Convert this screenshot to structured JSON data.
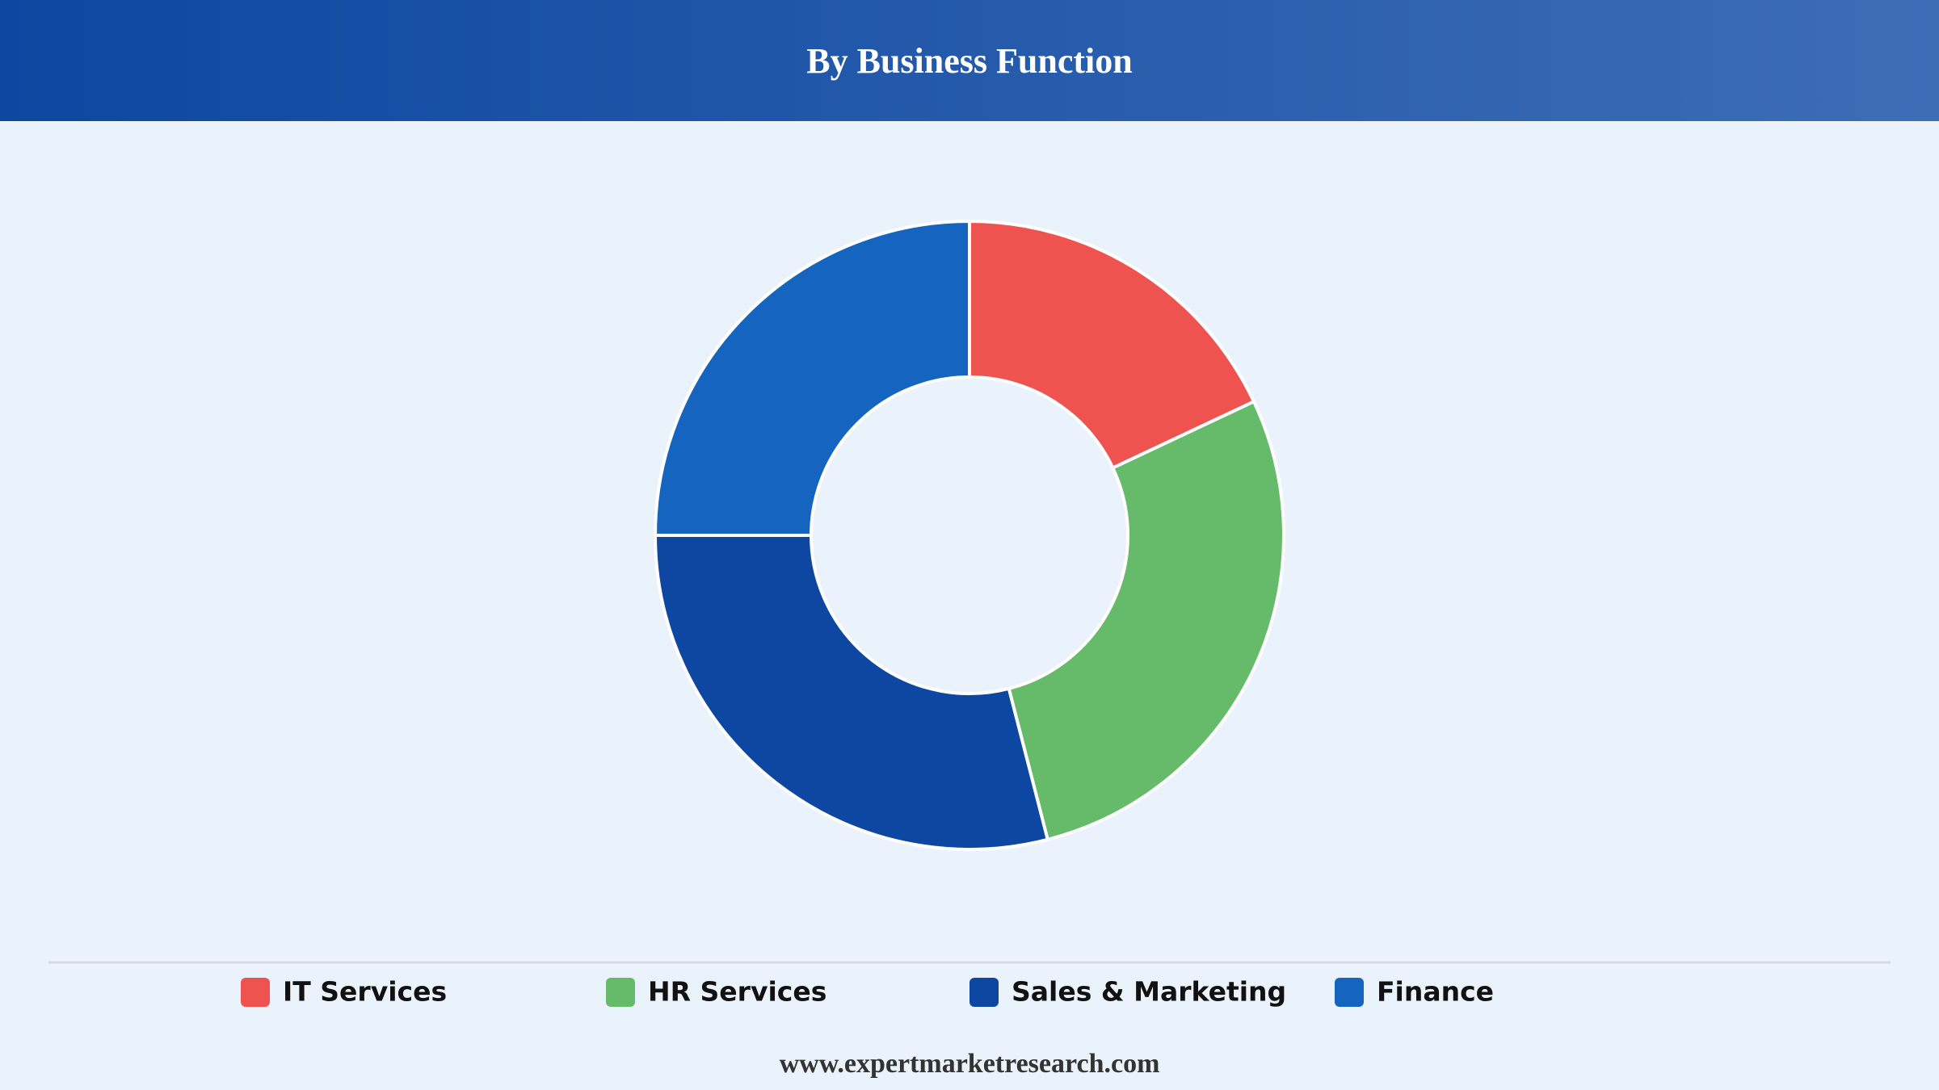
{
  "chart_data": {
    "type": "donut",
    "title": "By Business Function",
    "categories": [
      "IT Services",
      "HR Services",
      "Sales & Marketing",
      "Finance"
    ],
    "values": [
      18,
      28,
      29,
      25
    ],
    "colors": [
      "#ef5350",
      "#66bb6a",
      "#0d47a1",
      "#1565c0"
    ],
    "source": "www.expertmarketresearch.com"
  }
}
